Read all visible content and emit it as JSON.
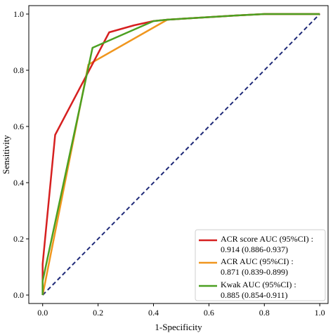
{
  "chart_data": {
    "type": "line",
    "title": "",
    "xlabel": "1-Specificity",
    "ylabel": "Sensitivity",
    "xlim": [
      -0.05,
      1.03
    ],
    "ylim": [
      -0.03,
      1.03
    ],
    "xticks": [
      "0.0",
      "0.2",
      "0.4",
      "0.6",
      "0.8",
      "1.0"
    ],
    "xtick_values": [
      0,
      0.2,
      0.4,
      0.6,
      0.8,
      1.0
    ],
    "yticks": [
      "0.0",
      "0.2",
      "0.4",
      "0.6",
      "0.8",
      "1.0"
    ],
    "ytick_values": [
      0,
      0.2,
      0.4,
      0.6,
      0.8,
      1.0
    ],
    "grid": false,
    "legend_position": "bottom-right",
    "reference_line": {
      "x": [
        0,
        1
      ],
      "y": [
        0,
        1
      ],
      "style": "dashed",
      "color": "#1f2a78"
    },
    "series": [
      {
        "name": "ACR score AUC (95%CI) :",
        "name_line2": "0.914 (0.886-0.937)",
        "color": "#d62020",
        "x": [
          0,
          0,
          0.045,
          0.24,
          0.33,
          0.4,
          0.45,
          0.7,
          0.8,
          1.0
        ],
        "y": [
          0,
          0.11,
          0.57,
          0.935,
          0.96,
          0.975,
          0.98,
          0.995,
          1.0,
          1.0
        ]
      },
      {
        "name": "ACR AUC (95%CI) :",
        "name_line2": "0.871 (0.839-0.899)",
        "color": "#f0961e",
        "x": [
          0,
          0.165,
          0.45,
          0.7,
          0.8,
          1.0
        ],
        "y": [
          0,
          0.82,
          0.98,
          0.995,
          1.0,
          1.0
        ]
      },
      {
        "name": "Kwak AUC (95%CI) :",
        "name_line2": "0.885 (0.854-0.911)",
        "color": "#4ca021",
        "x": [
          0,
          0,
          0.18,
          0.4,
          0.45,
          0.7,
          0.8,
          1.0
        ],
        "y": [
          0,
          0.05,
          0.88,
          0.975,
          0.98,
          0.995,
          1.0,
          1.0
        ]
      }
    ]
  }
}
